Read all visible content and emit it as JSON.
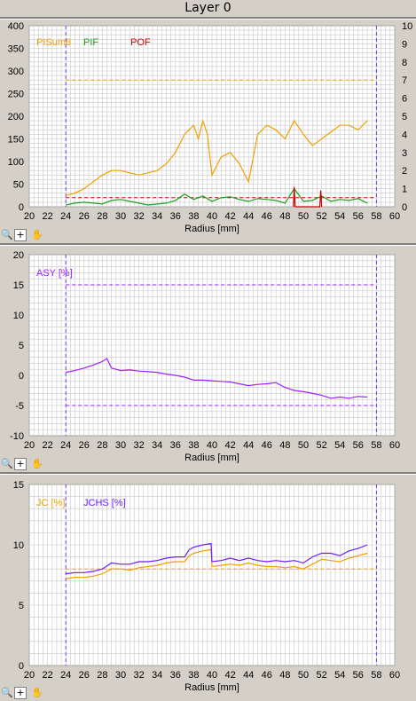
{
  "window": {
    "title": "Layer 0"
  },
  "toolbar": {
    "zoom_icon": "zoom-icon",
    "add_icon": "plus-icon",
    "pan_icon": "hand-icon",
    "plus_glyph": "+"
  },
  "colors": {
    "orange": "#f0a000",
    "green": "#20a020",
    "red": "#cc0000",
    "purple": "#a020ff",
    "violet": "#6a1fff",
    "grid": "#c8c8c8",
    "limit": "#7030ff"
  },
  "chart_data": [
    {
      "type": "line",
      "xlabel": "Radius [mm]",
      "xlim": [
        20,
        60
      ],
      "xticks": [
        "20",
        "22",
        "24",
        "26",
        "28",
        "30",
        "32",
        "34",
        "36",
        "38",
        "40",
        "42",
        "44",
        "46",
        "48",
        "50",
        "52",
        "54",
        "56",
        "58",
        "60"
      ],
      "ylim": [
        0,
        400
      ],
      "yticks": [
        "0",
        "50",
        "100",
        "150",
        "200",
        "250",
        "300",
        "350",
        "400"
      ],
      "y2lim": [
        0,
        10
      ],
      "y2ticks": [
        "0",
        "1",
        "2",
        "3",
        "4",
        "5",
        "6",
        "7",
        "8",
        "9",
        "10"
      ],
      "grid": true,
      "vlines": [
        24,
        58
      ],
      "hlines": [
        {
          "axis": "left",
          "y": 280,
          "color": "#f0a000"
        },
        {
          "axis": "right",
          "y": 0.5,
          "color": "#cc0000"
        }
      ],
      "legend": [
        "PISum8",
        "PIF",
        "POF"
      ],
      "series": [
        {
          "name": "PISum8",
          "axis": "left",
          "color": "#f0a000",
          "x": [
            24,
            25,
            26,
            27,
            28,
            29,
            30,
            31,
            32,
            33,
            34,
            35,
            36,
            37,
            38,
            38.5,
            39,
            39.5,
            40,
            41,
            42,
            43,
            44,
            45,
            46,
            47,
            48,
            49,
            50,
            51,
            52,
            53,
            54,
            55,
            56,
            57
          ],
          "y": [
            25,
            30,
            40,
            55,
            70,
            80,
            80,
            75,
            70,
            75,
            80,
            95,
            120,
            160,
            180,
            150,
            190,
            160,
            70,
            110,
            120,
            95,
            55,
            160,
            180,
            170,
            150,
            190,
            160,
            135,
            150,
            165,
            180,
            180,
            170,
            190
          ]
        },
        {
          "name": "PIF",
          "axis": "right",
          "color": "#20a020",
          "x": [
            24,
            25,
            26,
            27,
            28,
            29,
            30,
            31,
            32,
            33,
            34,
            35,
            36,
            37,
            38,
            39,
            40,
            41,
            42,
            43,
            44,
            45,
            46,
            47,
            48,
            49,
            50,
            51,
            52,
            53,
            54,
            55,
            56,
            57
          ],
          "y": [
            0.1,
            0.2,
            0.25,
            0.2,
            0.15,
            0.35,
            0.4,
            0.3,
            0.2,
            0.1,
            0.15,
            0.2,
            0.35,
            0.7,
            0.4,
            0.6,
            0.3,
            0.5,
            0.55,
            0.4,
            0.3,
            0.45,
            0.4,
            0.35,
            0.2,
            1.0,
            0.3,
            0.35,
            0.6,
            0.3,
            0.4,
            0.35,
            0.45,
            0.2
          ]
        },
        {
          "name": "POF",
          "axis": "right",
          "color": "#cc0000",
          "x": [
            48.9,
            49.0,
            49.1,
            51.8,
            51.9,
            52.0
          ],
          "y": [
            0,
            1.1,
            0,
            0,
            0.9,
            0
          ]
        }
      ]
    },
    {
      "type": "line",
      "xlabel": "Radius [mm]",
      "xlim": [
        20,
        60
      ],
      "xticks": [
        "20",
        "22",
        "24",
        "26",
        "28",
        "30",
        "32",
        "34",
        "36",
        "38",
        "40",
        "42",
        "44",
        "46",
        "48",
        "50",
        "52",
        "54",
        "56",
        "58",
        "60"
      ],
      "ylim": [
        -10,
        20
      ],
      "yticks": [
        "-10",
        "-5",
        "0",
        "5",
        "10",
        "15",
        "20"
      ],
      "grid": true,
      "vlines": [
        24,
        58
      ],
      "hlines": [
        {
          "y": 15,
          "color": "#a020ff"
        },
        {
          "y": -5,
          "color": "#a020ff"
        }
      ],
      "legend": [
        "ASY [%]"
      ],
      "series": [
        {
          "name": "ASY [%]",
          "color": "#a020ff",
          "x": [
            24,
            25,
            26,
            27,
            28,
            28.5,
            29,
            30,
            31,
            32,
            33,
            34,
            35,
            36,
            37,
            38,
            39,
            40,
            41,
            42,
            43,
            44,
            45,
            46,
            47,
            48,
            49,
            50,
            51,
            52,
            53,
            54,
            55,
            56,
            57
          ],
          "y": [
            0.5,
            0.8,
            1.2,
            1.7,
            2.3,
            2.8,
            1.2,
            0.8,
            0.9,
            0.7,
            0.6,
            0.5,
            0.2,
            0,
            -0.3,
            -0.8,
            -0.8,
            -0.9,
            -1,
            -1.1,
            -1.4,
            -1.7,
            -1.5,
            -1.4,
            -1.2,
            -2,
            -2.5,
            -2.7,
            -3,
            -3.3,
            -3.8,
            -3.6,
            -3.8,
            -3.5,
            -3.6
          ]
        }
      ]
    },
    {
      "type": "line",
      "xlabel": "Radius [mm]",
      "xlim": [
        20,
        60
      ],
      "xticks": [
        "20",
        "22",
        "24",
        "26",
        "28",
        "30",
        "32",
        "34",
        "36",
        "38",
        "40",
        "42",
        "44",
        "46",
        "48",
        "50",
        "52",
        "54",
        "56",
        "58",
        "60"
      ],
      "ylim": [
        0,
        15
      ],
      "yticks": [
        "0",
        "5",
        "10",
        "15"
      ],
      "grid": true,
      "vlines": [
        24,
        58
      ],
      "hlines": [
        {
          "y": 8,
          "color": "#f0a000"
        }
      ],
      "legend": [
        "JC [%]",
        "JCHS [%]"
      ],
      "series": [
        {
          "name": "JC [%]",
          "color": "#f0a000",
          "x": [
            24,
            25,
            26,
            27,
            28,
            29,
            30,
            31,
            32,
            33,
            34,
            35,
            36,
            37,
            37.5,
            38,
            39,
            39.9,
            40,
            41,
            42,
            43,
            44,
            45,
            46,
            47,
            48,
            49,
            50,
            51,
            52,
            53,
            54,
            55,
            56,
            57
          ],
          "y": [
            7.2,
            7.3,
            7.3,
            7.4,
            7.6,
            8.0,
            8.0,
            7.9,
            8.1,
            8.2,
            8.3,
            8.5,
            8.6,
            8.6,
            9.1,
            9.3,
            9.5,
            9.6,
            8.2,
            8.3,
            8.4,
            8.3,
            8.5,
            8.3,
            8.2,
            8.2,
            8.1,
            8.2,
            8.0,
            8.4,
            8.8,
            8.7,
            8.6,
            8.9,
            9.1,
            9.3
          ]
        },
        {
          "name": "JCHS [%]",
          "color": "#6a1fff",
          "x": [
            24,
            25,
            26,
            27,
            28,
            29,
            30,
            31,
            32,
            33,
            34,
            35,
            36,
            37,
            37.5,
            38,
            39,
            39.9,
            40,
            41,
            42,
            43,
            44,
            45,
            46,
            47,
            48,
            49,
            50,
            51,
            52,
            53,
            54,
            55,
            56,
            57
          ],
          "y": [
            7.6,
            7.7,
            7.7,
            7.8,
            8.0,
            8.5,
            8.4,
            8.4,
            8.6,
            8.6,
            8.7,
            8.9,
            9.0,
            9.0,
            9.6,
            9.8,
            10.0,
            10.1,
            8.6,
            8.7,
            8.9,
            8.7,
            8.9,
            8.7,
            8.6,
            8.7,
            8.6,
            8.7,
            8.5,
            9.0,
            9.3,
            9.3,
            9.1,
            9.5,
            9.7,
            10.0
          ]
        }
      ]
    }
  ]
}
